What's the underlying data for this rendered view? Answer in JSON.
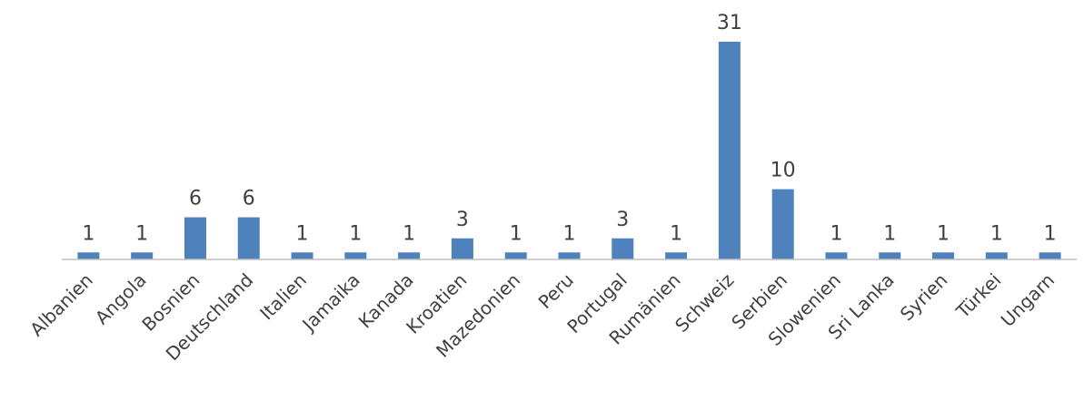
{
  "chart_data": {
    "type": "bar",
    "title": "",
    "xlabel": "",
    "ylabel": "",
    "categories": [
      "Albanien",
      "Angola",
      "Bosnien",
      "Deutschland",
      "Italien",
      "Jamaika",
      "Kanada",
      "Kroatien",
      "Mazedonien",
      "Peru",
      "Portugal",
      "Rumänien",
      "Schweiz",
      "Serbien",
      "Slowenien",
      "Sri Lanka",
      "Syrien",
      "Türkei",
      "Ungarn"
    ],
    "values": [
      1,
      1,
      6,
      6,
      1,
      1,
      1,
      3,
      1,
      1,
      3,
      1,
      31,
      10,
      1,
      1,
      1,
      1,
      1
    ],
    "ylim": [
      0,
      31
    ],
    "grid": false,
    "data_labels": true,
    "bar_color": "#4F81BD",
    "axis_color": "#BFBFBF",
    "text_color": "#404040"
  }
}
